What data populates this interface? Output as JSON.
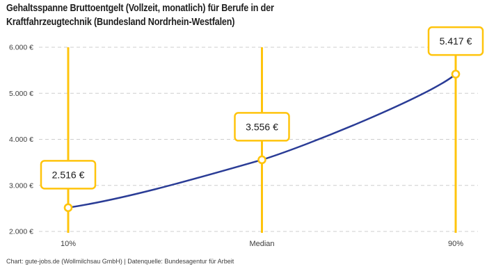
{
  "title": {
    "lines": [
      "Gehaltsspanne Bruttoentgelt (Vollzeit, monatlich) für Berufe in der",
      "Kraftfahrzeugtechnik (Bundesland Nordrhein-Westfalen)"
    ]
  },
  "footer": {
    "text": "Chart: gute-jobs.de (Wollmilchsau GmbH) | Datenquelle: Bundesagentur für Arbeit"
  },
  "chart_data": {
    "type": "line",
    "title": "Gehaltsspanne Bruttoentgelt (Vollzeit, monatlich) für Berufe in der Kraftfahrzeugtechnik (Bundesland Nordrhein-Westfalen)",
    "xlabel": "",
    "ylabel": "",
    "categories": [
      "10%",
      "Median",
      "90%"
    ],
    "values": [
      2516,
      3556,
      5417
    ],
    "value_labels": [
      "2.516 €",
      "3.556 €",
      "5.417 €"
    ],
    "ylim": [
      2000,
      6000
    ],
    "yticks": [
      2000,
      3000,
      4000,
      5000,
      6000
    ],
    "ytick_labels": [
      "2.000 €",
      "3.000 €",
      "4.000 €",
      "5.000 €",
      "6.000 €"
    ],
    "grid": "horizontal-dashed",
    "legend": "none",
    "colors": {
      "line": "#2A3C96",
      "accent": "#FFC40C",
      "grid": "#CDCDCD",
      "tick_text": "#3D3D3D",
      "label_text": "#1A1A1A",
      "label_box_bg": "#FFFFFF"
    }
  }
}
